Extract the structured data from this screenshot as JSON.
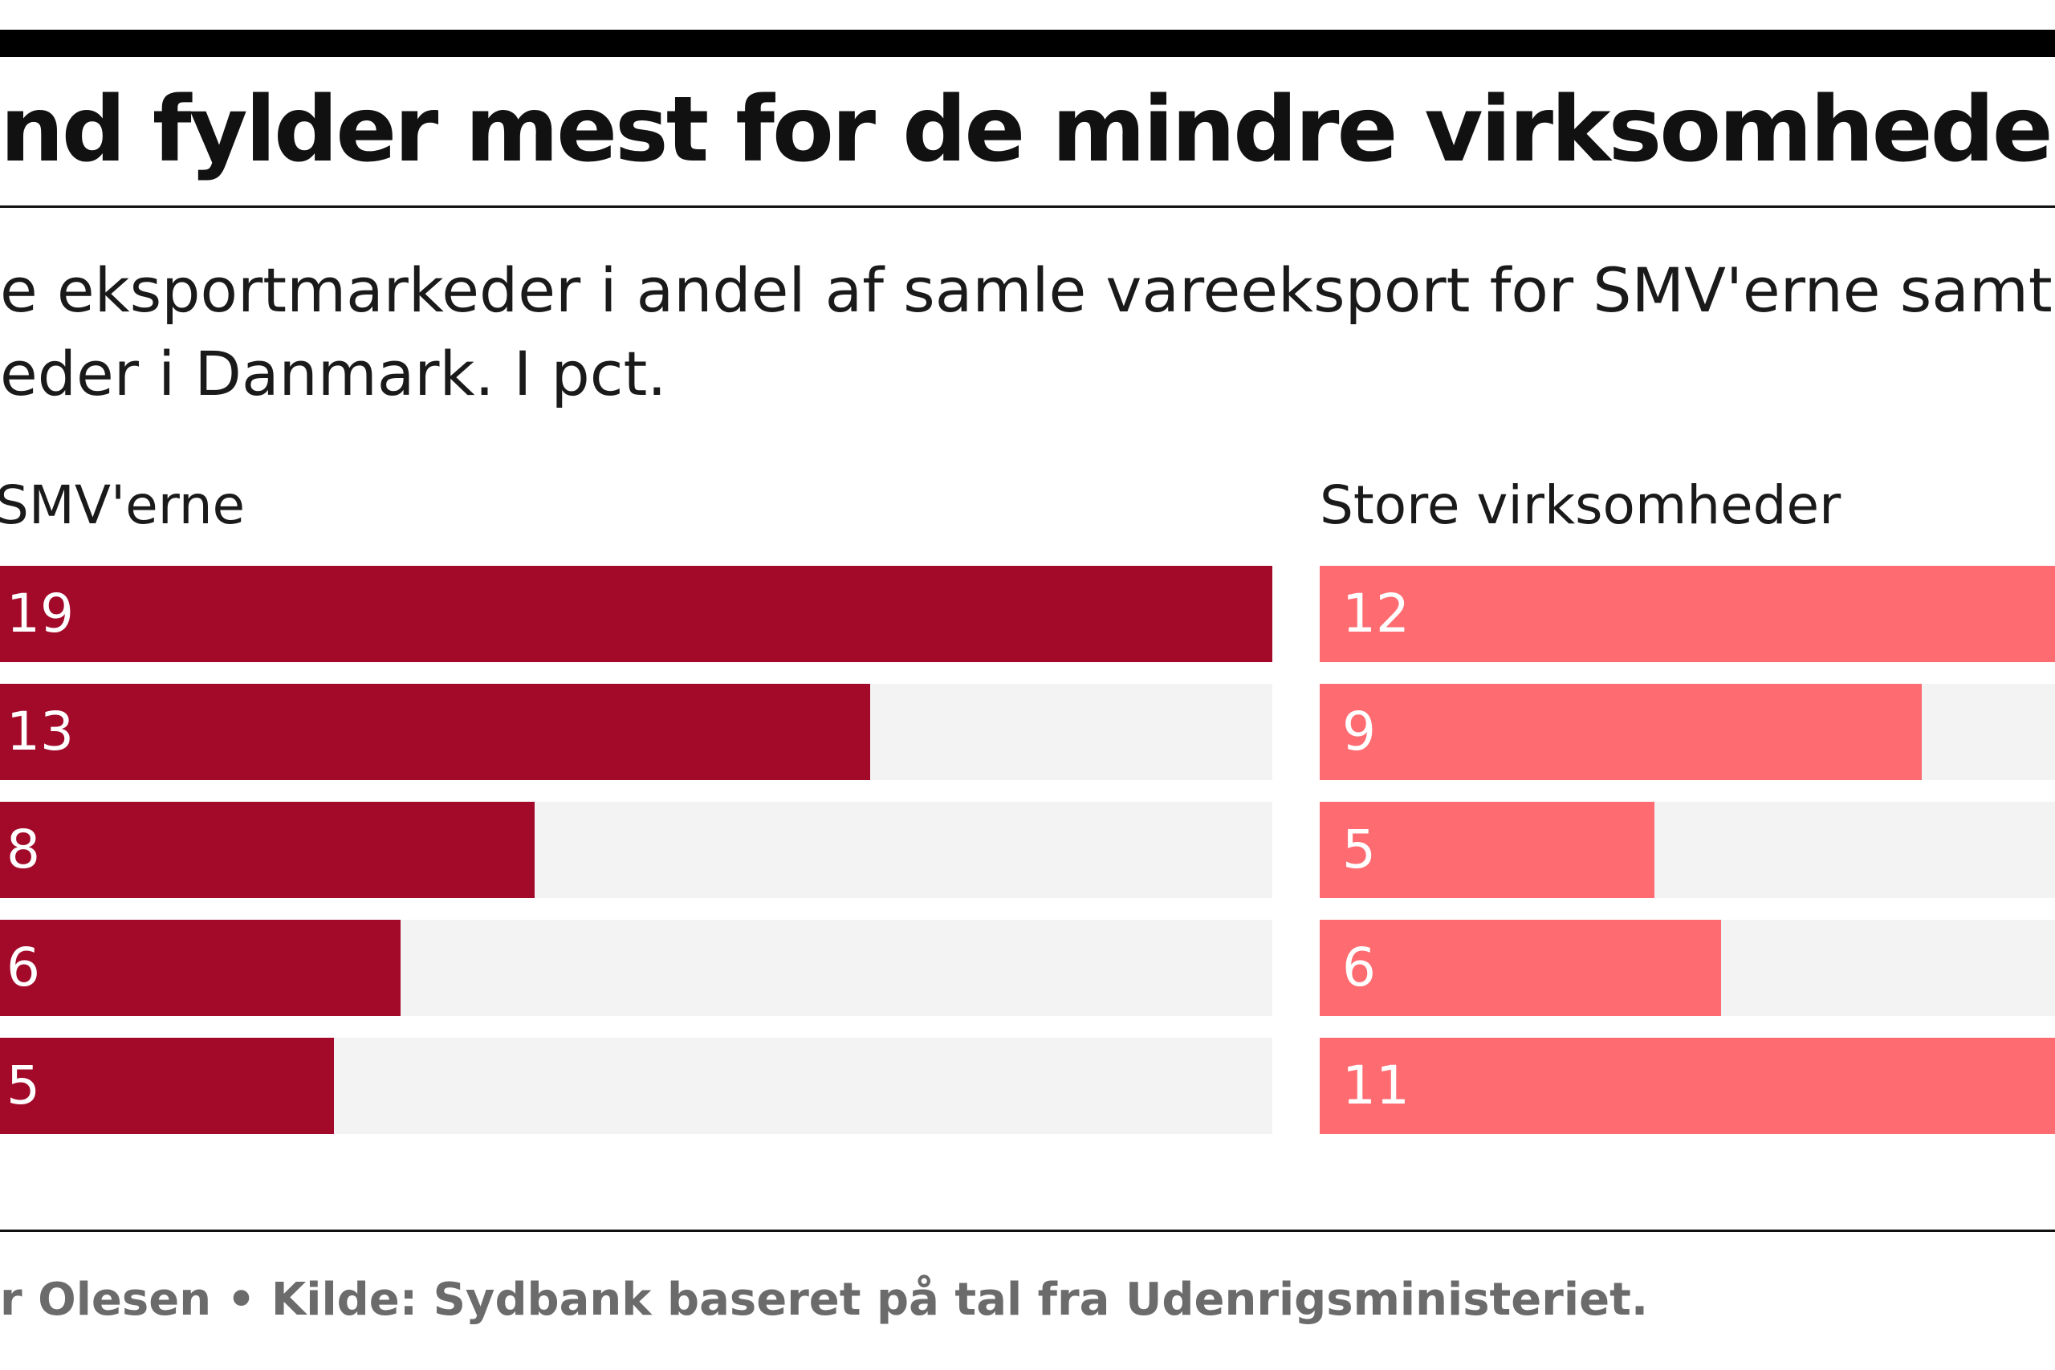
{
  "title": "nd fylder mest for de mindre virksomheder",
  "subtitle": {
    "line1": "e eksportmarkeder i andel af samle vareeksport for SMV'erne samt fo",
    "line2": "eder i Danmark. I pct."
  },
  "source": "r Olesen • Kilde: Sydbank baseret på tal fra Udenrigsministeriet.",
  "colors": {
    "smv_bar": "#a30a2a",
    "store_bar": "#fe6b70",
    "track": "#f3f3f3",
    "rule": "#111111"
  },
  "chart_data": {
    "type": "bar",
    "orientation": "horizontal",
    "title": "nd fylder mest for de mindre virksomheder",
    "categories": [
      "",
      "",
      "",
      "",
      ""
    ],
    "series": [
      {
        "name": "SMV'erne",
        "values": [
          19,
          13,
          8,
          6,
          5
        ],
        "max": 19
      },
      {
        "name": "Store virksomheder",
        "values": [
          12,
          9,
          5,
          6,
          11
        ],
        "max": 12
      }
    ],
    "xlim": [
      0,
      19
    ],
    "legend": "panel-titles"
  }
}
